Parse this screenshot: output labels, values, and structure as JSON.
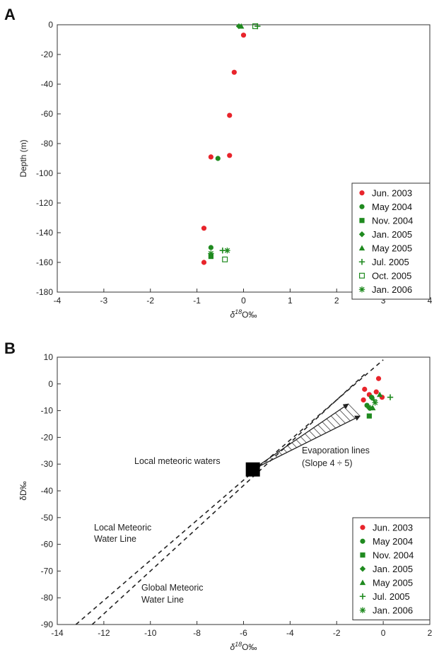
{
  "panel_a": {
    "letter": "A"
  },
  "panel_b": {
    "letter": "B"
  },
  "chart_data": [
    {
      "type": "scatter",
      "title": "",
      "xlabel_prefix": "δ",
      "xlabel_sup": "18",
      "xlabel_suffix": "O‰",
      "ylabel": "Depth (m)",
      "xlim": [
        -4,
        4
      ],
      "ylim": [
        -180,
        0
      ],
      "xticks": [
        -4,
        -3,
        -2,
        -1,
        0,
        1,
        2,
        3,
        4
      ],
      "yticks": [
        0,
        -20,
        -40,
        -60,
        -80,
        -100,
        -120,
        -140,
        -160,
        -180
      ],
      "grid": false,
      "legend_position": "bottom-right",
      "series": [
        {
          "name": "Jun. 2003",
          "marker": "circle",
          "color": "#e8242b",
          "points": [
            [
              0.0,
              -7
            ],
            [
              -0.2,
              -32
            ],
            [
              -0.3,
              -61
            ],
            [
              -0.3,
              -88
            ],
            [
              -0.7,
              -89
            ],
            [
              -0.85,
              -137
            ],
            [
              -0.85,
              -160
            ]
          ]
        },
        {
          "name": "May 2004",
          "marker": "circle",
          "color": "#1f8a1f",
          "points": [
            [
              -0.55,
              -90
            ],
            [
              -0.7,
              -150
            ]
          ]
        },
        {
          "name": "Nov. 2004",
          "marker": "square",
          "color": "#1f8a1f",
          "points": [
            [
              -0.7,
              -156
            ]
          ]
        },
        {
          "name": "Jan. 2005",
          "marker": "diamond",
          "color": "#1f8a1f",
          "points": [
            [
              -0.1,
              -1
            ]
          ]
        },
        {
          "name": "May 2005",
          "marker": "triangle",
          "color": "#1f8a1f",
          "points": [
            [
              -0.05,
              -1
            ]
          ]
        },
        {
          "name": "Jul. 2005",
          "marker": "plus",
          "color": "#1f8a1f",
          "points": [
            [
              0.3,
              -1
            ],
            [
              -0.45,
              -152
            ]
          ]
        },
        {
          "name": "Oct. 2005",
          "marker": "open-square",
          "color": "#1f8a1f",
          "points": [
            [
              0.25,
              -1
            ],
            [
              -0.4,
              -158
            ]
          ]
        },
        {
          "name": "Jan. 2006",
          "marker": "asterisk",
          "color": "#1f8a1f",
          "points": [
            [
              -0.35,
              -152
            ],
            [
              -0.7,
              -154
            ]
          ]
        }
      ]
    },
    {
      "type": "scatter",
      "title": "",
      "xlabel_prefix": "δ",
      "xlabel_sup": "18",
      "xlabel_suffix": "O‰",
      "ylabel": "δD‰",
      "xlim": [
        -14,
        2
      ],
      "ylim": [
        -90,
        10
      ],
      "xticks": [
        -14,
        -12,
        -10,
        -8,
        -6,
        -4,
        -2,
        0,
        2
      ],
      "yticks": [
        10,
        0,
        -10,
        -20,
        -30,
        -40,
        -50,
        -60,
        -70,
        -80,
        -90
      ],
      "grid": false,
      "legend_position": "bottom-right",
      "lines": [
        {
          "name": "Local Meteoric Water Line",
          "style": "dashed",
          "x": [
            -13.2,
            0.0
          ],
          "y": [
            -90,
            9
          ]
        },
        {
          "name": "Global Meteoric Water Line",
          "style": "dashed",
          "x": [
            -12.5,
            -0.7
          ],
          "y": [
            -90,
            4.4
          ]
        }
      ],
      "annotations": {
        "local_meteoric_waters": "Local meteoric waters",
        "evaporation_line1": "Evaporation lines",
        "evaporation_line2": "(Slope 4 ÷ 5)",
        "lmwl_line1": "Local Meteoric",
        "lmwl_line2": "Water Line",
        "gmwl_line1": "Global Meteoric",
        "gmwl_line2": "Water Line"
      },
      "local_meteoric_waters_point": [
        -5.6,
        -32
      ],
      "evaporation_fan": {
        "origin": [
          -5.6,
          -32
        ],
        "upper_end": [
          -1.5,
          -7.5
        ],
        "lower_end": [
          -1.0,
          -12
        ]
      },
      "series": [
        {
          "name": "Jun. 2003",
          "marker": "circle",
          "color": "#e8242b",
          "points": [
            [
              -0.2,
              2
            ],
            [
              -0.8,
              -2
            ],
            [
              -0.6,
              -4
            ],
            [
              -0.3,
              -3
            ],
            [
              -0.85,
              -6
            ],
            [
              -0.05,
              -5
            ]
          ]
        },
        {
          "name": "May 2004",
          "marker": "circle",
          "color": "#1f8a1f",
          "points": [
            [
              -0.5,
              -5
            ],
            [
              -0.7,
              -8
            ]
          ]
        },
        {
          "name": "Nov. 2004",
          "marker": "square",
          "color": "#1f8a1f",
          "points": [
            [
              -0.6,
              -12
            ]
          ]
        },
        {
          "name": "Jan. 2005",
          "marker": "diamond",
          "color": "#1f8a1f",
          "points": [
            [
              -0.6,
              -9
            ]
          ]
        },
        {
          "name": "May 2005",
          "marker": "triangle",
          "color": "#1f8a1f",
          "points": [
            [
              -0.45,
              -9
            ],
            [
              -0.15,
              -4
            ]
          ]
        },
        {
          "name": "Jul. 2005",
          "marker": "plus",
          "color": "#1f8a1f",
          "points": [
            [
              0.3,
              -5
            ],
            [
              -0.4,
              -6
            ]
          ]
        },
        {
          "name": "Jan. 2006",
          "marker": "asterisk",
          "color": "#1f8a1f",
          "points": [
            [
              -0.35,
              -7
            ],
            [
              -0.55,
              -9
            ]
          ]
        }
      ]
    }
  ]
}
